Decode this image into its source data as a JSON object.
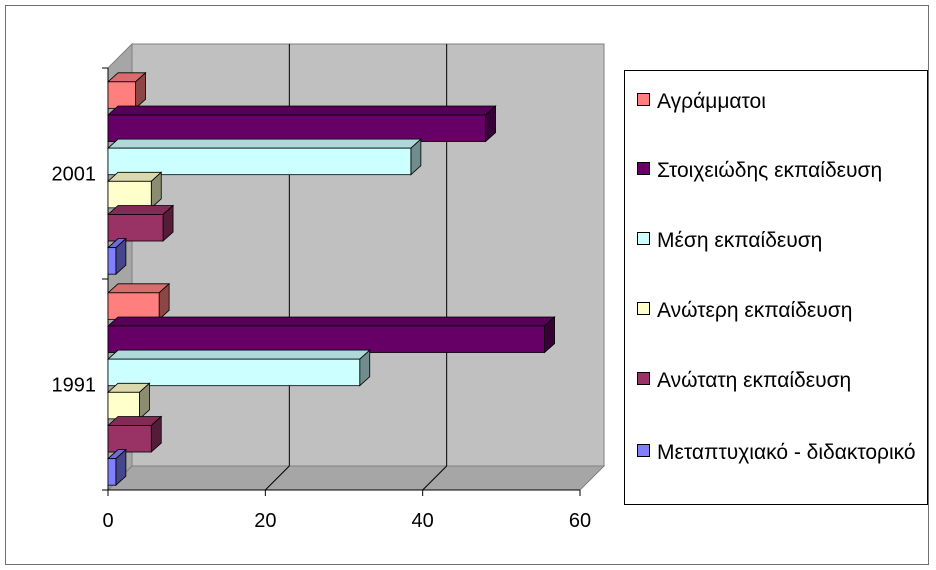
{
  "chart_data": {
    "type": "bar",
    "orientation": "horizontal",
    "three_d": true,
    "categories": [
      "2001",
      "1991"
    ],
    "series": [
      {
        "name": "Αγράμματοι",
        "values": [
          3.5,
          6.5
        ],
        "color": "#ff7f7f"
      },
      {
        "name": "Στοιχειώδης εκπαίδευση",
        "values": [
          48,
          55.5
        ],
        "color": "#660066"
      },
      {
        "name": "Μέση εκπαίδευση",
        "values": [
          38.5,
          32
        ],
        "color": "#ccffff"
      },
      {
        "name": "Ανώτερη εκπαίδευση",
        "values": [
          5.5,
          4
        ],
        "color": "#ffffcc"
      },
      {
        "name": "Ανώτατη εκπαίδευση",
        "values": [
          7,
          5.5
        ],
        "color": "#993366"
      },
      {
        "name": "Μεταπτυχιακό - διδακτορικό",
        "values": [
          1,
          1
        ],
        "color": "#8080ff"
      }
    ],
    "x_ticks": [
      "0",
      "20",
      "40",
      "60"
    ],
    "xlim": [
      0,
      60
    ],
    "grid": true,
    "legend_position": "right",
    "plot_background": "#c0c0c0",
    "title": "",
    "xlabel": "",
    "ylabel": ""
  }
}
